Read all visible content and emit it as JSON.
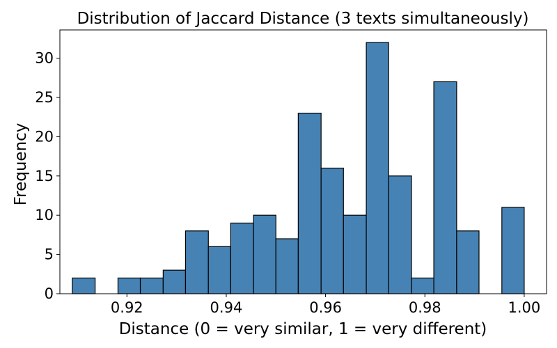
{
  "chart_data": {
    "type": "bar",
    "subtype": "histogram",
    "title": "Distribution of Jaccard Distance (3 texts simultaneously)",
    "xlabel": "Distance (0 = very similar, 1 = very different)",
    "ylabel": "Frequency",
    "xlim": [
      0.9065,
      1.0045
    ],
    "ylim": [
      0,
      33.6
    ],
    "xticks": [
      "0.92",
      "0.94",
      "0.96",
      "0.98",
      "1.00"
    ],
    "xtick_values": [
      0.92,
      0.94,
      0.96,
      0.98,
      1.0
    ],
    "yticks": [
      "0",
      "5",
      "10",
      "15",
      "20",
      "25",
      "30"
    ],
    "ytick_values": [
      0,
      5,
      10,
      15,
      20,
      25,
      30
    ],
    "bin_edges": [
      0.909,
      0.9136,
      0.9182,
      0.9227,
      0.9273,
      0.9318,
      0.9364,
      0.9409,
      0.9455,
      0.95,
      0.9545,
      0.9591,
      0.9636,
      0.9682,
      0.9727,
      0.9773,
      0.9818,
      0.9864,
      0.9909,
      0.9955,
      1.0
    ],
    "values": [
      2,
      0,
      2,
      2,
      3,
      8,
      6,
      9,
      10,
      7,
      23,
      16,
      10,
      32,
      15,
      2,
      27,
      8,
      0,
      11
    ],
    "bar_color": "#4682b4",
    "edge_color": "#000000",
    "grid": false,
    "legend": "none"
  }
}
